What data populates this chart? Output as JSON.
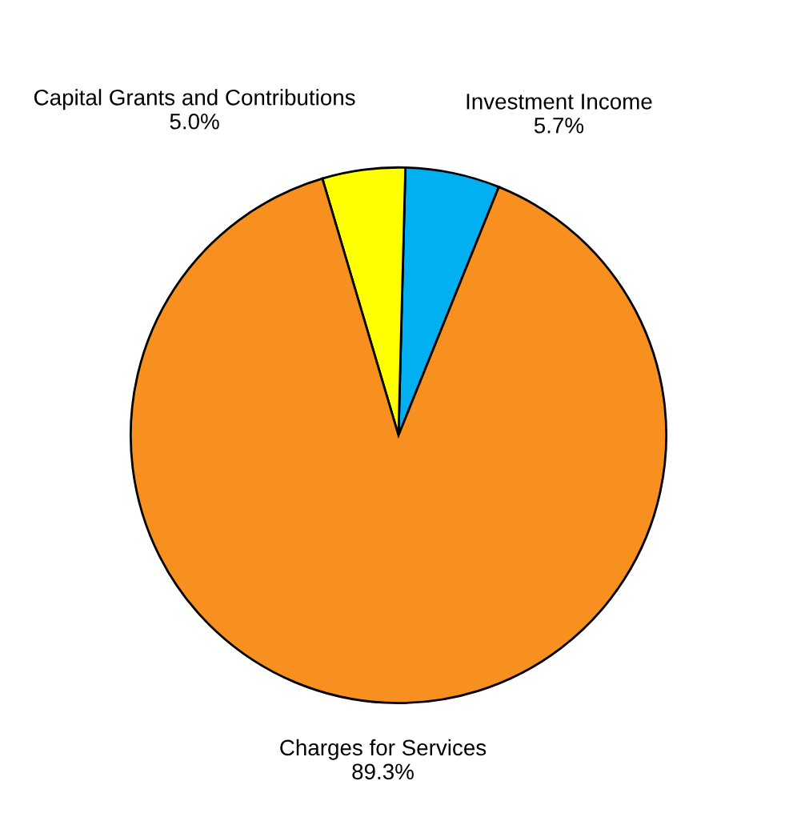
{
  "chart_data": {
    "type": "pie",
    "categories": [
      "Investment Income",
      "Capital Grants and Contributions",
      "Charges for Services"
    ],
    "values": [
      5.7,
      5.0,
      89.3
    ],
    "value_labels": [
      "5.7%",
      "5.0%",
      "89.3%"
    ],
    "colors": [
      "#00b0f0",
      "#ffff00",
      "#f7901e"
    ]
  }
}
